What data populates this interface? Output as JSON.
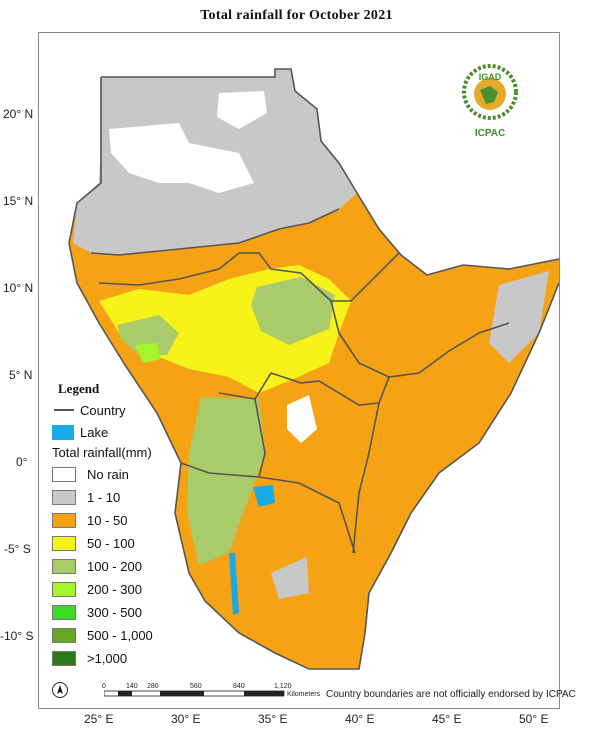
{
  "title": "Total rainfall for  October  2021",
  "logo": {
    "top_text": "IGAD",
    "bottom_text": "ICPAC",
    "colors": {
      "wreath": "#4a8f2d",
      "text": "#3a8f2d",
      "globe": "#e5a92b"
    }
  },
  "axes": {
    "y_labels": [
      "20° N",
      "15° N",
      "10° N",
      "5° N",
      "0°",
      "-5° S",
      "-10° S"
    ],
    "x_labels": [
      "25° E",
      "30° E",
      "35° E",
      "40° E",
      "45° E",
      "50° E"
    ]
  },
  "legend": {
    "heading": "Legend",
    "country_label": "Country",
    "lake_label": "Lake",
    "rain_heading": "Total rainfall(mm)",
    "classes": [
      {
        "label": "No rain",
        "color": "#ffffff"
      },
      {
        "label": "1 - 10",
        "color": "#c8c8c8"
      },
      {
        "label": "10 - 50",
        "color": "#f5a314"
      },
      {
        "label": "50 - 100",
        "color": "#f7f31a"
      },
      {
        "label": "100 - 200",
        "color": "#aacb6a"
      },
      {
        "label": "200 - 300",
        "color": "#a6f52a"
      },
      {
        "label": "300 - 500",
        "color": "#3fd92a"
      },
      {
        "label": "500 - 1,000",
        "color": "#6aa523"
      },
      {
        "label": ">1,000",
        "color": "#2e7a1a"
      }
    ],
    "lake_color": "#18a9e6",
    "country_color": "#555555"
  },
  "scale_bar": {
    "ticks": [
      "0",
      "140",
      "280",
      "560",
      "840",
      "1,120"
    ],
    "unit": "Kilometers"
  },
  "disclaimer": "Country boundaries are not officially endorsed by ICPAC"
}
